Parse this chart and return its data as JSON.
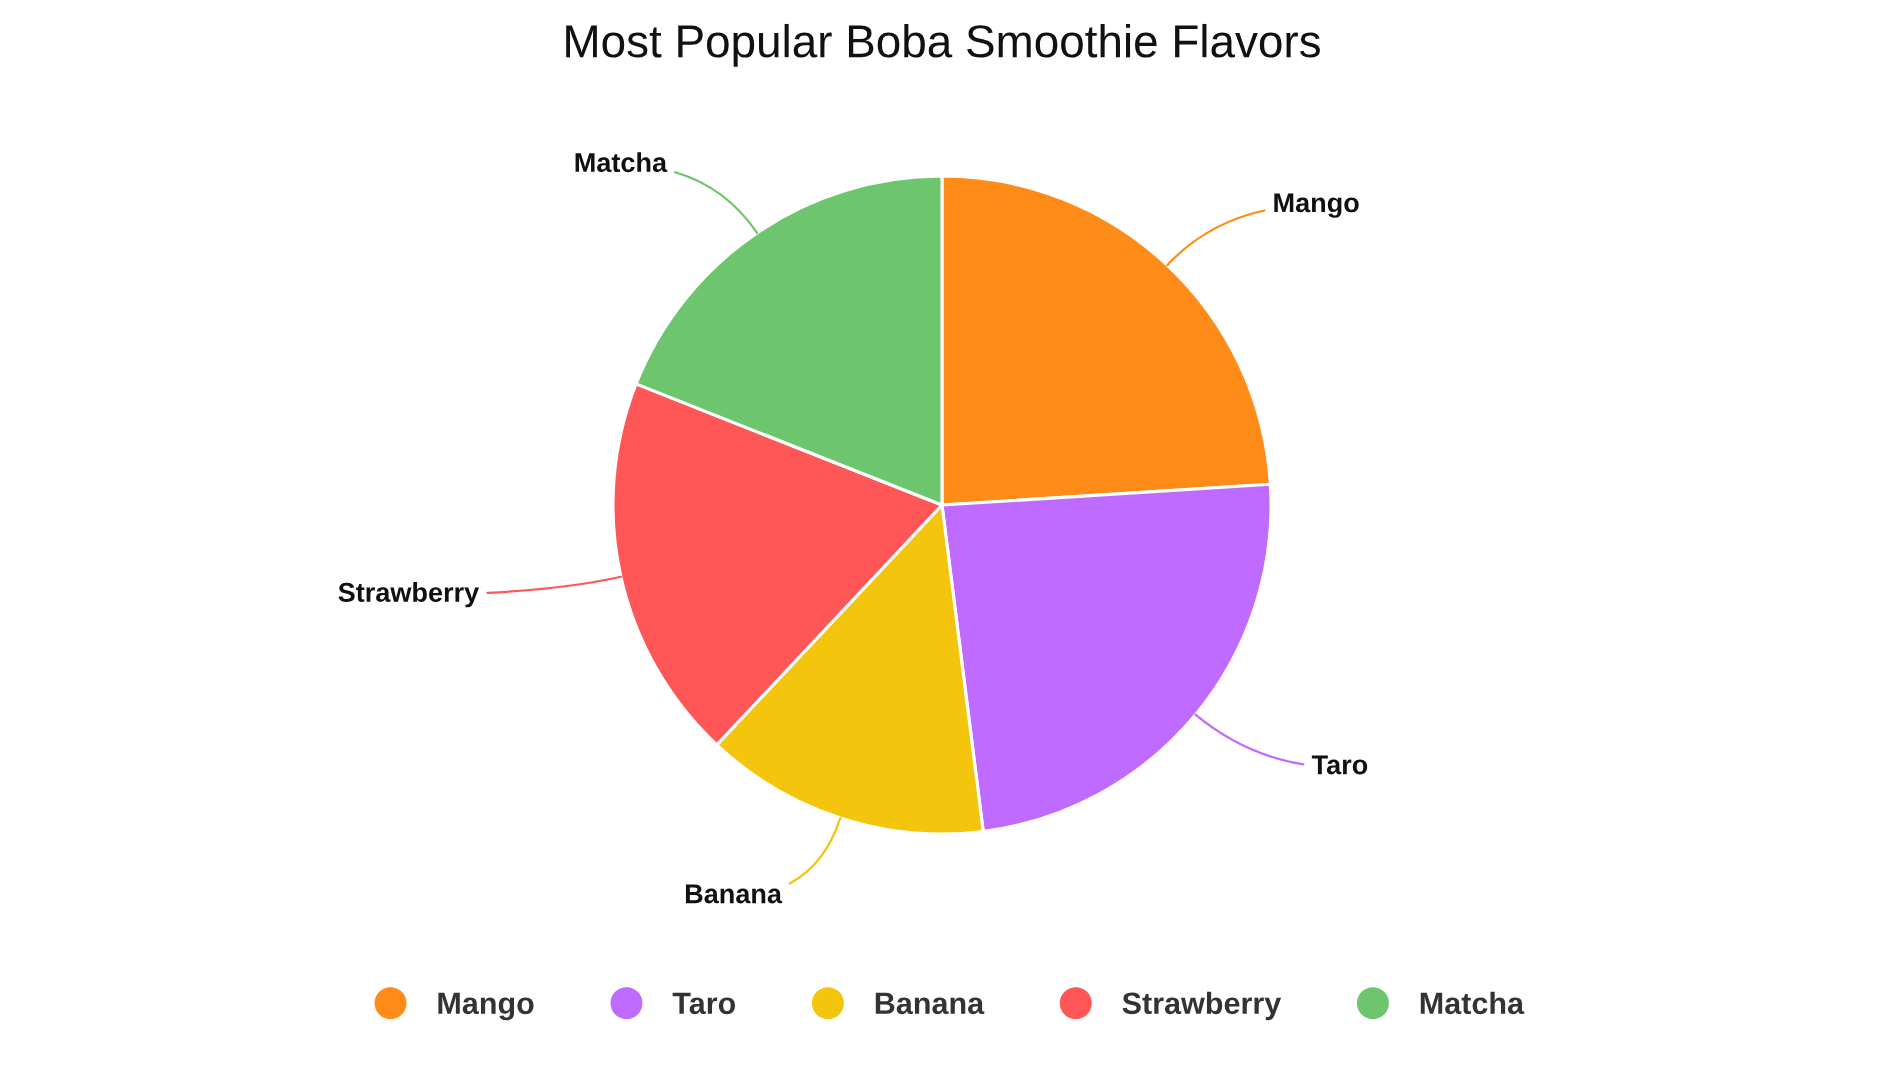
{
  "chart_data": {
    "type": "pie",
    "title": "Most Popular Boba Smoothie Flavors",
    "categories": [
      "Mango",
      "Taro",
      "Banana",
      "Strawberry",
      "Matcha"
    ],
    "values": [
      24,
      24,
      14,
      19,
      19
    ],
    "colors": [
      "#ff8c19",
      "#c06bff",
      "#f3c50d",
      "#ff5757",
      "#6dc56d"
    ],
    "legend": "bottom"
  }
}
